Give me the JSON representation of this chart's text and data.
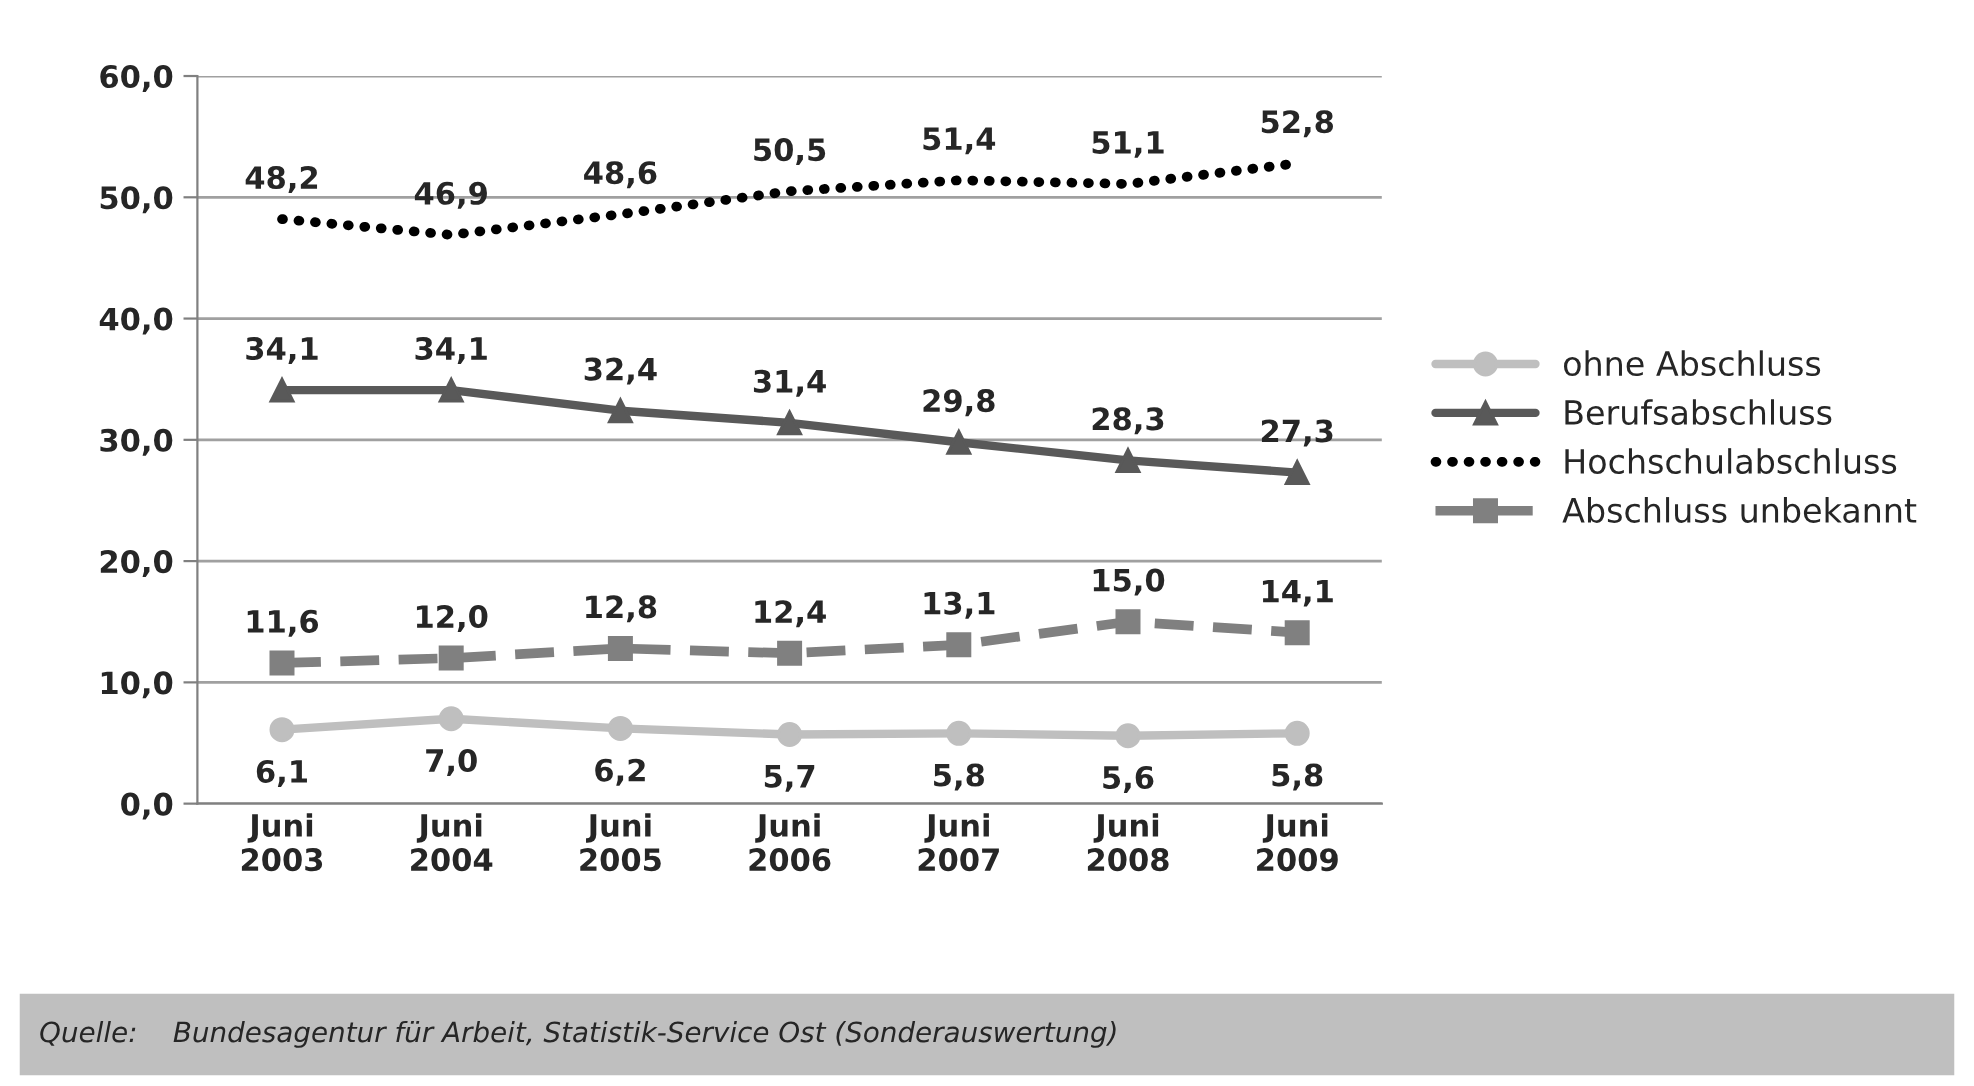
{
  "chart_data": {
    "type": "line",
    "categories": [
      "Juni\n2003",
      "Juni\n2004",
      "Juni\n2005",
      "Juni\n2006",
      "Juni\n2007",
      "Juni\n2008",
      "Juni\n2009"
    ],
    "series": [
      {
        "name": "ohne Abschluss",
        "color": "#bfbfbf",
        "marker": "circle",
        "line_style": "solid",
        "values": [
          6.1,
          7.0,
          6.2,
          5.7,
          5.8,
          5.6,
          5.8
        ],
        "value_labels": [
          "6,1",
          "7,0",
          "6,2",
          "5,7",
          "5,8",
          "5,6",
          "5,8"
        ]
      },
      {
        "name": "Berufsabschluss",
        "color": "#595959",
        "marker": "triangle",
        "line_style": "solid",
        "values": [
          34.1,
          34.1,
          32.4,
          31.4,
          29.8,
          28.3,
          27.3
        ],
        "value_labels": [
          "34,1",
          "34,1",
          "32,4",
          "31,4",
          "29,8",
          "28,3",
          "27,3"
        ]
      },
      {
        "name": "Hochschulabschluss",
        "color": "#000000",
        "marker": "none",
        "line_style": "dotted",
        "values": [
          48.2,
          46.9,
          48.6,
          50.5,
          51.4,
          51.1,
          52.8
        ],
        "value_labels": [
          "48,2",
          "46,9",
          "48,6",
          "50,5",
          "51,4",
          "51,1",
          "52,8"
        ]
      },
      {
        "name": "Abschluss unbekannt",
        "color": "#808080",
        "marker": "square",
        "line_style": "dashed",
        "values": [
          11.6,
          12.0,
          12.8,
          12.4,
          13.1,
          15.0,
          14.1
        ],
        "value_labels": [
          "11,6",
          "12,0",
          "12,8",
          "12,4",
          "13,1",
          "15,0",
          "14,1"
        ]
      }
    ],
    "ylim": [
      0,
      60
    ],
    "yticks": [
      {
        "value": 0,
        "label": "0,0"
      },
      {
        "value": 10,
        "label": "10,0"
      },
      {
        "value": 20,
        "label": "20,0"
      },
      {
        "value": 30,
        "label": "30,0"
      },
      {
        "value": 40,
        "label": "40,0"
      },
      {
        "value": 50,
        "label": "50,0"
      },
      {
        "value": 60,
        "label": "60,0"
      }
    ],
    "grid": "y",
    "legend": "right",
    "annotations": [
      "Quelle:    Bundesagentur für Arbeit, Statistik-Service Ost (Sonderauswertung)"
    ]
  }
}
